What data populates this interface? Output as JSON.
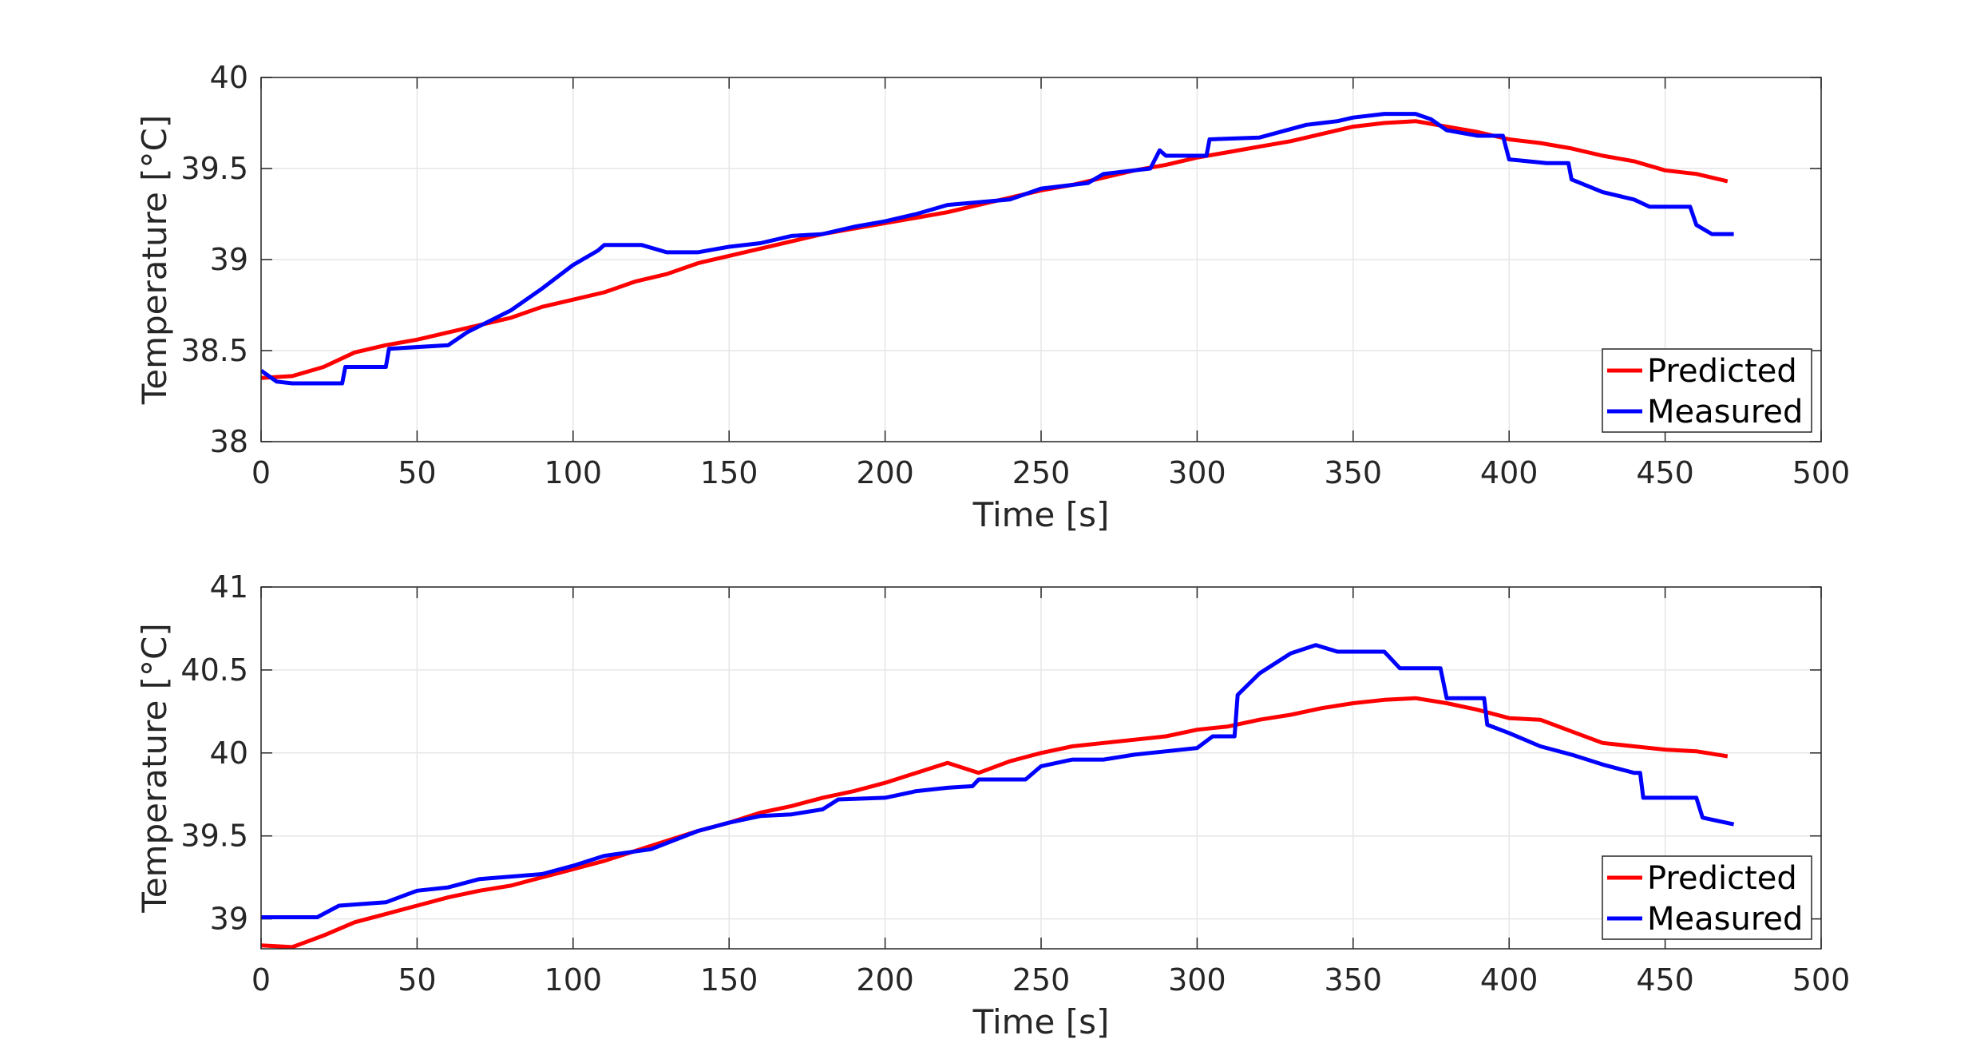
{
  "chart_data": [
    {
      "type": "line",
      "xlabel": "Time [s]",
      "ylabel": "Temperature [°C]",
      "xlim": [
        0,
        500
      ],
      "ylim": [
        38,
        40
      ],
      "xticks": [
        "0",
        "50",
        "100",
        "150",
        "200",
        "250",
        "300",
        "350",
        "400",
        "450",
        "500"
      ],
      "yticks": [
        "38",
        "38.5",
        "39",
        "39.5",
        "40"
      ],
      "grid": true,
      "legend_position": "bottom-right",
      "series": [
        {
          "name": "Predicted",
          "color": "#ff0000",
          "points": [
            [
              0,
              38.35
            ],
            [
              10,
              38.36
            ],
            [
              20,
              38.41
            ],
            [
              30,
              38.49
            ],
            [
              40,
              38.53
            ],
            [
              50,
              38.56
            ],
            [
              60,
              38.6
            ],
            [
              70,
              38.64
            ],
            [
              80,
              38.68
            ],
            [
              90,
              38.74
            ],
            [
              100,
              38.78
            ],
            [
              110,
              38.82
            ],
            [
              120,
              38.88
            ],
            [
              130,
              38.92
            ],
            [
              140,
              38.98
            ],
            [
              150,
              39.02
            ],
            [
              160,
              39.06
            ],
            [
              170,
              39.1
            ],
            [
              180,
              39.14
            ],
            [
              190,
              39.17
            ],
            [
              200,
              39.2
            ],
            [
              210,
              39.23
            ],
            [
              220,
              39.26
            ],
            [
              230,
              39.3
            ],
            [
              240,
              39.34
            ],
            [
              250,
              39.38
            ],
            [
              260,
              39.41
            ],
            [
              270,
              39.45
            ],
            [
              280,
              39.49
            ],
            [
              290,
              39.52
            ],
            [
              300,
              39.56
            ],
            [
              310,
              39.59
            ],
            [
              320,
              39.62
            ],
            [
              330,
              39.65
            ],
            [
              340,
              39.69
            ],
            [
              350,
              39.73
            ],
            [
              360,
              39.75
            ],
            [
              370,
              39.76
            ],
            [
              380,
              39.73
            ],
            [
              390,
              39.7
            ],
            [
              400,
              39.66
            ],
            [
              410,
              39.64
            ],
            [
              420,
              39.61
            ],
            [
              430,
              39.57
            ],
            [
              440,
              39.54
            ],
            [
              450,
              39.49
            ],
            [
              460,
              39.47
            ],
            [
              470,
              39.43
            ]
          ]
        },
        {
          "name": "Measured",
          "color": "#0000ff",
          "points": [
            [
              0,
              38.39
            ],
            [
              5,
              38.33
            ],
            [
              10,
              38.32
            ],
            [
              26,
              38.32
            ],
            [
              27,
              38.41
            ],
            [
              40,
              38.41
            ],
            [
              41,
              38.51
            ],
            [
              60,
              38.53
            ],
            [
              66,
              38.6
            ],
            [
              80,
              38.72
            ],
            [
              90,
              38.84
            ],
            [
              100,
              38.97
            ],
            [
              108,
              39.05
            ],
            [
              110,
              39.08
            ],
            [
              122,
              39.08
            ],
            [
              130,
              39.04
            ],
            [
              140,
              39.04
            ],
            [
              150,
              39.07
            ],
            [
              160,
              39.09
            ],
            [
              170,
              39.13
            ],
            [
              180,
              39.14
            ],
            [
              190,
              39.18
            ],
            [
              200,
              39.21
            ],
            [
              210,
              39.25
            ],
            [
              220,
              39.3
            ],
            [
              240,
              39.33
            ],
            [
              250,
              39.39
            ],
            [
              265,
              39.42
            ],
            [
              270,
              39.47
            ],
            [
              285,
              39.5
            ],
            [
              288,
              39.6
            ],
            [
              290,
              39.57
            ],
            [
              300,
              39.57
            ],
            [
              303,
              39.57
            ],
            [
              304,
              39.66
            ],
            [
              320,
              39.67
            ],
            [
              335,
              39.74
            ],
            [
              345,
              39.76
            ],
            [
              350,
              39.78
            ],
            [
              360,
              39.8
            ],
            [
              370,
              39.8
            ],
            [
              375,
              39.77
            ],
            [
              380,
              39.71
            ],
            [
              390,
              39.68
            ],
            [
              398,
              39.68
            ],
            [
              400,
              39.55
            ],
            [
              412,
              39.53
            ],
            [
              419,
              39.53
            ],
            [
              420,
              39.44
            ],
            [
              430,
              39.37
            ],
            [
              440,
              39.33
            ],
            [
              445,
              39.29
            ],
            [
              458,
              39.29
            ],
            [
              460,
              39.19
            ],
            [
              465,
              39.14
            ],
            [
              472,
              39.14
            ]
          ]
        }
      ]
    },
    {
      "type": "line",
      "xlabel": "Time [s]",
      "ylabel": "Temperature [°C]",
      "xlim": [
        0,
        500
      ],
      "ylim": [
        38.82,
        41
      ],
      "xticks": [
        "0",
        "50",
        "100",
        "150",
        "200",
        "250",
        "300",
        "350",
        "400",
        "450",
        "500"
      ],
      "yticks": [
        "39",
        "39.5",
        "40",
        "40.5",
        "41"
      ],
      "grid": true,
      "legend_position": "bottom-right",
      "series": [
        {
          "name": "Predicted",
          "color": "#ff0000",
          "points": [
            [
              0,
              38.84
            ],
            [
              10,
              38.83
            ],
            [
              20,
              38.9
            ],
            [
              30,
              38.98
            ],
            [
              40,
              39.03
            ],
            [
              50,
              39.08
            ],
            [
              60,
              39.13
            ],
            [
              70,
              39.17
            ],
            [
              80,
              39.2
            ],
            [
              90,
              39.25
            ],
            [
              100,
              39.3
            ],
            [
              110,
              39.35
            ],
            [
              120,
              39.41
            ],
            [
              130,
              39.47
            ],
            [
              140,
              39.53
            ],
            [
              150,
              39.58
            ],
            [
              160,
              39.64
            ],
            [
              170,
              39.68
            ],
            [
              180,
              39.73
            ],
            [
              190,
              39.77
            ],
            [
              200,
              39.82
            ],
            [
              210,
              39.88
            ],
            [
              220,
              39.94
            ],
            [
              230,
              39.88
            ],
            [
              240,
              39.95
            ],
            [
              250,
              40.0
            ],
            [
              260,
              40.04
            ],
            [
              270,
              40.06
            ],
            [
              280,
              40.08
            ],
            [
              290,
              40.1
            ],
            [
              300,
              40.14
            ],
            [
              310,
              40.16
            ],
            [
              320,
              40.2
            ],
            [
              330,
              40.23
            ],
            [
              340,
              40.27
            ],
            [
              350,
              40.3
            ],
            [
              360,
              40.32
            ],
            [
              370,
              40.33
            ],
            [
              380,
              40.3
            ],
            [
              390,
              40.26
            ],
            [
              400,
              40.21
            ],
            [
              410,
              40.2
            ],
            [
              420,
              40.13
            ],
            [
              430,
              40.06
            ],
            [
              440,
              40.04
            ],
            [
              450,
              40.02
            ],
            [
              460,
              40.01
            ],
            [
              470,
              39.98
            ]
          ]
        },
        {
          "name": "Measured",
          "color": "#0000ff",
          "points": [
            [
              0,
              39.01
            ],
            [
              18,
              39.01
            ],
            [
              25,
              39.08
            ],
            [
              40,
              39.1
            ],
            [
              50,
              39.17
            ],
            [
              60,
              39.19
            ],
            [
              70,
              39.24
            ],
            [
              90,
              39.27
            ],
            [
              100,
              39.32
            ],
            [
              110,
              39.38
            ],
            [
              125,
              39.42
            ],
            [
              140,
              39.53
            ],
            [
              150,
              39.58
            ],
            [
              160,
              39.62
            ],
            [
              170,
              39.63
            ],
            [
              180,
              39.66
            ],
            [
              185,
              39.72
            ],
            [
              200,
              39.73
            ],
            [
              210,
              39.77
            ],
            [
              220,
              39.79
            ],
            [
              228,
              39.8
            ],
            [
              230,
              39.84
            ],
            [
              245,
              39.84
            ],
            [
              250,
              39.92
            ],
            [
              260,
              39.96
            ],
            [
              270,
              39.96
            ],
            [
              280,
              39.99
            ],
            [
              285,
              40.0
            ],
            [
              300,
              40.03
            ],
            [
              305,
              40.1
            ],
            [
              312,
              40.1
            ],
            [
              313,
              40.35
            ],
            [
              320,
              40.48
            ],
            [
              330,
              40.6
            ],
            [
              338,
              40.65
            ],
            [
              345,
              40.61
            ],
            [
              360,
              40.61
            ],
            [
              365,
              40.51
            ],
            [
              378,
              40.51
            ],
            [
              380,
              40.33
            ],
            [
              392,
              40.33
            ],
            [
              393,
              40.17
            ],
            [
              400,
              40.12
            ],
            [
              410,
              40.04
            ],
            [
              420,
              39.99
            ],
            [
              430,
              39.93
            ],
            [
              440,
              39.88
            ],
            [
              442,
              39.88
            ],
            [
              443,
              39.73
            ],
            [
              460,
              39.73
            ],
            [
              462,
              39.61
            ],
            [
              472,
              39.57
            ]
          ]
        }
      ]
    }
  ]
}
